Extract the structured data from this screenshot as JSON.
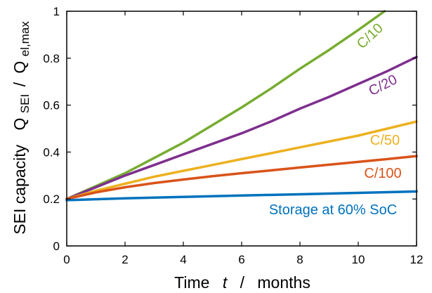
{
  "chart_data": {
    "type": "line",
    "xlabel": {
      "prefix": "Time",
      "variable": "t",
      "separator": "/",
      "unit": "months"
    },
    "ylabel": {
      "prefix": "SEI capacity",
      "numerator": "Q",
      "numerator_sub": "SEI",
      "separator": "/",
      "denominator": "Q",
      "denominator_sub": "el,max"
    },
    "xlim": [
      0,
      12
    ],
    "ylim": [
      0,
      1
    ],
    "xticks": [
      0,
      2,
      4,
      6,
      8,
      10,
      12
    ],
    "yticks": [
      0,
      0.2,
      0.4,
      0.6,
      0.8,
      1
    ],
    "xtick_labels": [
      "0",
      "2",
      "4",
      "6",
      "8",
      "10",
      "12"
    ],
    "ytick_labels": [
      "0",
      "0.2",
      "0.4",
      "0.6",
      "0.8",
      "1"
    ],
    "grid": false,
    "series": [
      {
        "name": "C/10",
        "color": "#77ac30",
        "x": [
          0,
          1,
          2,
          3,
          4,
          5,
          6,
          7,
          8,
          9,
          10,
          10.9
        ],
        "y": [
          0.2,
          0.255,
          0.31,
          0.375,
          0.44,
          0.515,
          0.59,
          0.67,
          0.755,
          0.835,
          0.92,
          1.0
        ]
      },
      {
        "name": "C/20",
        "color": "#7e2f8e",
        "x": [
          0,
          1,
          2,
          3,
          4,
          5,
          6,
          7,
          8,
          9,
          10,
          11,
          12
        ],
        "y": [
          0.2,
          0.25,
          0.3,
          0.345,
          0.39,
          0.435,
          0.48,
          0.53,
          0.585,
          0.635,
          0.69,
          0.745,
          0.805
        ]
      },
      {
        "name": "C/50",
        "color": "#edb120",
        "x": [
          0,
          1,
          2,
          3,
          4,
          5,
          6,
          7,
          8,
          9,
          10,
          11,
          12
        ],
        "y": [
          0.2,
          0.235,
          0.265,
          0.295,
          0.32,
          0.345,
          0.37,
          0.395,
          0.42,
          0.445,
          0.47,
          0.5,
          0.53
        ]
      },
      {
        "name": "C/100",
        "color": "#d95319",
        "x": [
          0,
          1,
          2,
          3,
          4,
          5,
          6,
          7,
          8,
          9,
          10,
          11,
          12
        ],
        "y": [
          0.2,
          0.228,
          0.25,
          0.268,
          0.283,
          0.297,
          0.31,
          0.322,
          0.334,
          0.346,
          0.358,
          0.37,
          0.383
        ]
      },
      {
        "name": "Storage at 60% SoC",
        "color": "#0072bd",
        "x": [
          0,
          2,
          4,
          6,
          8,
          10,
          12
        ],
        "y": [
          0.195,
          0.203,
          0.209,
          0.215,
          0.22,
          0.226,
          0.232
        ]
      }
    ]
  }
}
